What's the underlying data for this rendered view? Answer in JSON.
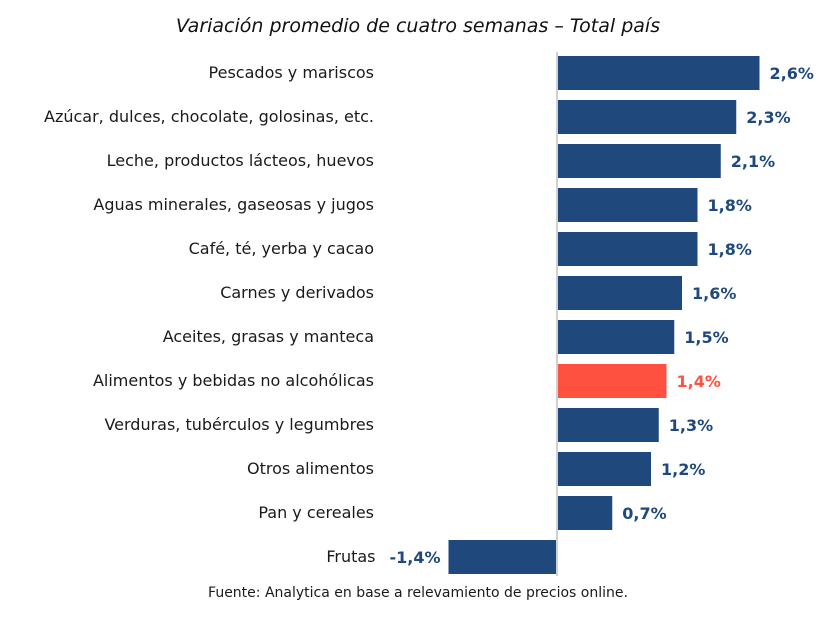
{
  "chart_data": {
    "type": "bar",
    "orientation": "horizontal",
    "title": "Variación promedio de cuatro semanas – Total país",
    "source": "Fuente: Analytica en base a relevamiento de precios online.",
    "xlabel": "",
    "ylabel": "",
    "grid": false,
    "categories": [
      "Pescados y mariscos",
      "Azúcar, dulces, chocolate, golosinas, etc.",
      "Leche, productos lácteos, huevos",
      "Aguas minerales, gaseosas y jugos",
      "Café, té, yerba y cacao",
      "Carnes y derivados",
      "Aceites, grasas y manteca",
      "Alimentos y bebidas no alcohólicas",
      "Verduras, tubérculos y legumbres",
      "Otros alimentos",
      "Pan y cereales",
      "Frutas"
    ],
    "values": [
      2.6,
      2.3,
      2.1,
      1.8,
      1.8,
      1.6,
      1.5,
      1.4,
      1.3,
      1.2,
      0.7,
      -1.4
    ],
    "labels": [
      "2,6%",
      "2,3%",
      "2,1%",
      "1,8%",
      "1,8%",
      "1,6%",
      "1,5%",
      "1,4%",
      "1,3%",
      "1,2%",
      "0,7%",
      "-1,4%"
    ],
    "highlight_index": 7,
    "colors": {
      "bar": "#1f497d",
      "highlight": "#ff5040",
      "axis": "#d0d0d0"
    },
    "unit": "%"
  }
}
